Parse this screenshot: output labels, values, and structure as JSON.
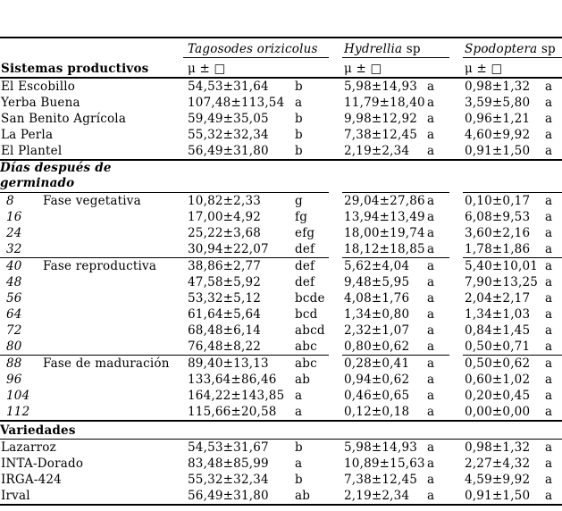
{
  "table": {
    "left_header": "Sistemas productivos",
    "stat_header": "μ ± □",
    "species": [
      {
        "name": "Tagosodes orizicolus",
        "suffix": ""
      },
      {
        "name": "Hydrellia",
        "suffix": " sp"
      },
      {
        "name": "Spodoptera",
        "suffix": " sp"
      }
    ],
    "rows": [
      {
        "type": "data",
        "l1": "El Escobillo",
        "l2": "",
        "l1_italic": false,
        "cls": "",
        "cells": [
          [
            "54,53±31,64",
            "b"
          ],
          [
            "5,98±14,93",
            "a"
          ],
          [
            "0,98±1,32",
            "a"
          ]
        ]
      },
      {
        "type": "data",
        "l1": "Yerba Buena",
        "l2": "",
        "l1_italic": false,
        "cls": "",
        "cells": [
          [
            "107,48±113,54",
            "a"
          ],
          [
            "11,79±18,40",
            "a"
          ],
          [
            "3,59±5,80",
            "a"
          ]
        ]
      },
      {
        "type": "data",
        "l1": "San Benito Agrícola",
        "l2": "",
        "l1_italic": false,
        "cls": "",
        "cells": [
          [
            "59,49±35,05",
            "b"
          ],
          [
            "9,98±12,92",
            "a"
          ],
          [
            "0,96±1,21",
            "a"
          ]
        ]
      },
      {
        "type": "data",
        "l1": "La Perla",
        "l2": "",
        "l1_italic": false,
        "cls": "",
        "cells": [
          [
            "55,32±32,34",
            "b"
          ],
          [
            "7,38±12,45",
            "a"
          ],
          [
            "4,60±9,92",
            "a"
          ]
        ]
      },
      {
        "type": "data",
        "l1": "El Plantel",
        "l2": "",
        "l1_italic": false,
        "cls": "",
        "cells": [
          [
            "56,49±31,80",
            "b"
          ],
          [
            "2,19±2,34",
            "a"
          ],
          [
            "0,91±1,50",
            "a"
          ]
        ]
      },
      {
        "type": "section",
        "label": "Días después de germinado",
        "italic": true,
        "wrap": true,
        "cls": "bt-full sec-row"
      },
      {
        "type": "data",
        "l1": "8",
        "l2": "Fase vegetativa",
        "l1_italic": true,
        "cls": "bt-seg",
        "cells": [
          [
            "10,82±2,33",
            "g"
          ],
          [
            "29,04±27,86",
            "a"
          ],
          [
            "0,10±0,17",
            "a"
          ]
        ]
      },
      {
        "type": "data",
        "l1": "16",
        "l2": "",
        "l1_italic": true,
        "cls": "",
        "cells": [
          [
            "17,00±4,92",
            "fg"
          ],
          [
            "13,94±13,49",
            "a"
          ],
          [
            "6,08±9,53",
            "a"
          ]
        ]
      },
      {
        "type": "data",
        "l1": "24",
        "l2": "",
        "l1_italic": true,
        "cls": "",
        "cells": [
          [
            "25,22±3,68",
            "efg"
          ],
          [
            "18,00±19,74",
            "a"
          ],
          [
            "3,60±2,16",
            "a"
          ]
        ]
      },
      {
        "type": "data",
        "l1": "32",
        "l2": "",
        "l1_italic": true,
        "cls": "",
        "cells": [
          [
            "30,94±22,07",
            "def"
          ],
          [
            "18,12±18,85",
            "a"
          ],
          [
            "1,78±1,86",
            "a"
          ]
        ]
      },
      {
        "type": "data",
        "l1": "40",
        "l2": "Fase reproductiva",
        "l1_italic": true,
        "cls": "bt-seg",
        "cells": [
          [
            "38,86±2,77",
            "def"
          ],
          [
            "5,62±4,04",
            "a"
          ],
          [
            "5,40±10,01",
            "a"
          ]
        ]
      },
      {
        "type": "data",
        "l1": "48",
        "l2": "",
        "l1_italic": true,
        "cls": "",
        "cells": [
          [
            "47,58±5,92",
            "def"
          ],
          [
            "9,48±5,95",
            "a"
          ],
          [
            "7,90±13,25",
            "a"
          ]
        ]
      },
      {
        "type": "data",
        "l1": "56",
        "l2": "",
        "l1_italic": true,
        "cls": "",
        "cells": [
          [
            "53,32±5,12",
            "bcde"
          ],
          [
            "4,08±1,76",
            "a"
          ],
          [
            "2,04±2,17",
            "a"
          ]
        ]
      },
      {
        "type": "data",
        "l1": "64",
        "l2": "",
        "l1_italic": true,
        "cls": "",
        "cells": [
          [
            "61,64±5,64",
            "bcd"
          ],
          [
            "1,34±0,80",
            "a"
          ],
          [
            "1,34±1,03",
            "a"
          ]
        ]
      },
      {
        "type": "data",
        "l1": "72",
        "l2": "",
        "l1_italic": true,
        "cls": "",
        "cells": [
          [
            "68,48±6,14",
            "abcd"
          ],
          [
            "2,32±1,07",
            "a"
          ],
          [
            "0,84±1,45",
            "a"
          ]
        ]
      },
      {
        "type": "data",
        "l1": "80",
        "l2": "",
        "l1_italic": true,
        "cls": "",
        "cells": [
          [
            "76,48±8,22",
            "abc"
          ],
          [
            "0,80±0,62",
            "a"
          ],
          [
            "0,50±0,71",
            "a"
          ]
        ]
      },
      {
        "type": "data",
        "l1": "88",
        "l2": "Fase de maduración",
        "l1_italic": true,
        "cls": "bt-seg",
        "cells": [
          [
            "89,40±13,13",
            "abc"
          ],
          [
            "0,28±0,41",
            "a"
          ],
          [
            "0,50±0,62",
            "a"
          ]
        ]
      },
      {
        "type": "data",
        "l1": "96",
        "l2": "",
        "l1_italic": true,
        "cls": "",
        "cells": [
          [
            "133,64±86,46",
            "ab"
          ],
          [
            "0,94±0,62",
            "a"
          ],
          [
            "0,60±1,02",
            "a"
          ]
        ]
      },
      {
        "type": "data",
        "l1": "104",
        "l2": "",
        "l1_italic": true,
        "cls": "",
        "cells": [
          [
            "164,22±143,85",
            "a"
          ],
          [
            "0,46±0,65",
            "a"
          ],
          [
            "0,20±0,45",
            "a"
          ]
        ]
      },
      {
        "type": "data",
        "l1": "112",
        "l2": "",
        "l1_italic": true,
        "cls": "",
        "cells": [
          [
            "115,66±20,58",
            "a"
          ],
          [
            "0,12±0,18",
            "a"
          ],
          [
            "0,00±0,00",
            "a"
          ]
        ]
      },
      {
        "type": "section",
        "label": "Variedades",
        "italic": false,
        "wrap": false,
        "cls": "bt-full sec-row"
      },
      {
        "type": "data",
        "l1": "Lazarroz",
        "l2": "",
        "l1_italic": false,
        "cls": "bt-thin",
        "cells": [
          [
            "54,53±31,67",
            "b"
          ],
          [
            "5,98±14,93",
            "a"
          ],
          [
            "0,98±1,32",
            "a"
          ]
        ]
      },
      {
        "type": "data",
        "l1": "INTA-Dorado",
        "l2": "",
        "l1_italic": false,
        "cls": "",
        "cells": [
          [
            "83,48±85,99",
            "a"
          ],
          [
            "10,89±15,63",
            "a"
          ],
          [
            "2,27±4,32",
            "a"
          ]
        ]
      },
      {
        "type": "data",
        "l1": "IRGA-424",
        "l2": "",
        "l1_italic": false,
        "cls": "",
        "cells": [
          [
            "55,32±32,34",
            "b"
          ],
          [
            "7,38±12,45",
            "a"
          ],
          [
            "4,59±9,92",
            "a"
          ]
        ]
      },
      {
        "type": "data",
        "l1": "Irval",
        "l2": "",
        "l1_italic": false,
        "cls": "bb-full",
        "cells": [
          [
            "56,49±31,80",
            "ab"
          ],
          [
            "2,19±2,34",
            "a"
          ],
          [
            "0,91±1,50",
            "a"
          ]
        ]
      }
    ]
  }
}
